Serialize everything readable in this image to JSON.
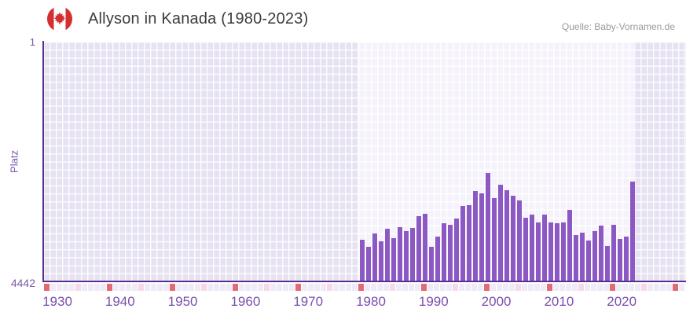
{
  "header": {
    "title": "Allyson in Kanada (1980-2023)",
    "source": "Quelle: Baby-Vornamen.de",
    "flag": "canada-flag-icon"
  },
  "chart_data": {
    "type": "bar",
    "title": "Allyson in Kanada (1980-2023)",
    "xlabel": "",
    "ylabel": "Platz",
    "y_axis_inverted": true,
    "ylim": [
      1,
      4442
    ],
    "yticks": [
      "1",
      "4442"
    ],
    "xticks": [
      "1930",
      "1940",
      "1950",
      "1960",
      "1970",
      "1980",
      "1990",
      "2000",
      "2010",
      "2020"
    ],
    "x": [
      1980,
      1981,
      1982,
      1983,
      1984,
      1985,
      1986,
      1987,
      1988,
      1989,
      1990,
      1991,
      1992,
      1993,
      1994,
      1995,
      1996,
      1997,
      1998,
      1999,
      2000,
      2001,
      2002,
      2003,
      2004,
      2005,
      2006,
      2007,
      2008,
      2009,
      2010,
      2011,
      2012,
      2013,
      2014,
      2015,
      2016,
      2017,
      2018,
      2019,
      2020,
      2021,
      2022,
      2023
    ],
    "values": [
      3670,
      3805,
      3550,
      3705,
      3460,
      3645,
      3435,
      3515,
      3450,
      3240,
      3195,
      3800,
      3610,
      3360,
      3395,
      3275,
      3045,
      3030,
      2765,
      2810,
      2430,
      2895,
      2645,
      2755,
      2860,
      2945,
      3265,
      3200,
      3355,
      3210,
      3345,
      3365,
      3345,
      3115,
      3580,
      3545,
      3685,
      3515,
      3405,
      3785,
      3395,
      3660,
      3610,
      2590
    ],
    "highlight_year_range": [
      1980,
      2023
    ],
    "grid": true,
    "legend": "none",
    "colors": {
      "bar": "#8b58c4",
      "axis_line": "#5b2f8f",
      "tick_labels": "#7b4fae",
      "plot_background": "#e6e2f1",
      "highlight_band": "#f5f2fb",
      "strip_base": "#eeeaf7",
      "strip_decade": "#e06b77",
      "strip_half_decade": "#f5d9e6",
      "title_text": "#3c3c3c",
      "source_text": "#9a9a9a",
      "flag_red": "#d32f2f"
    }
  }
}
